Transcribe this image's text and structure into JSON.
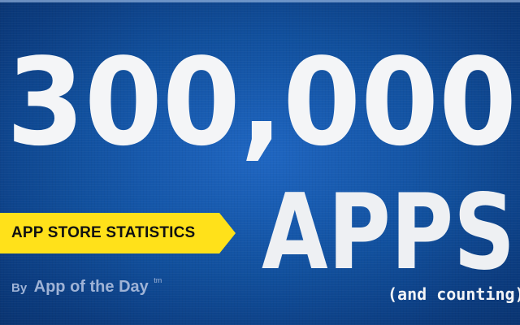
{
  "headline": {
    "number": "300,000",
    "word": "APPS",
    "note": "(and counting)"
  },
  "banner": {
    "label": "APP STORE STATISTICS",
    "color": "#ffe11a"
  },
  "byline": {
    "prefix": "By",
    "name": "App of the Day",
    "trademark": "tm"
  },
  "colors": {
    "background": "#11509e",
    "headline_text": "#f4f5f7",
    "byline_text": "#9fb3d6"
  }
}
